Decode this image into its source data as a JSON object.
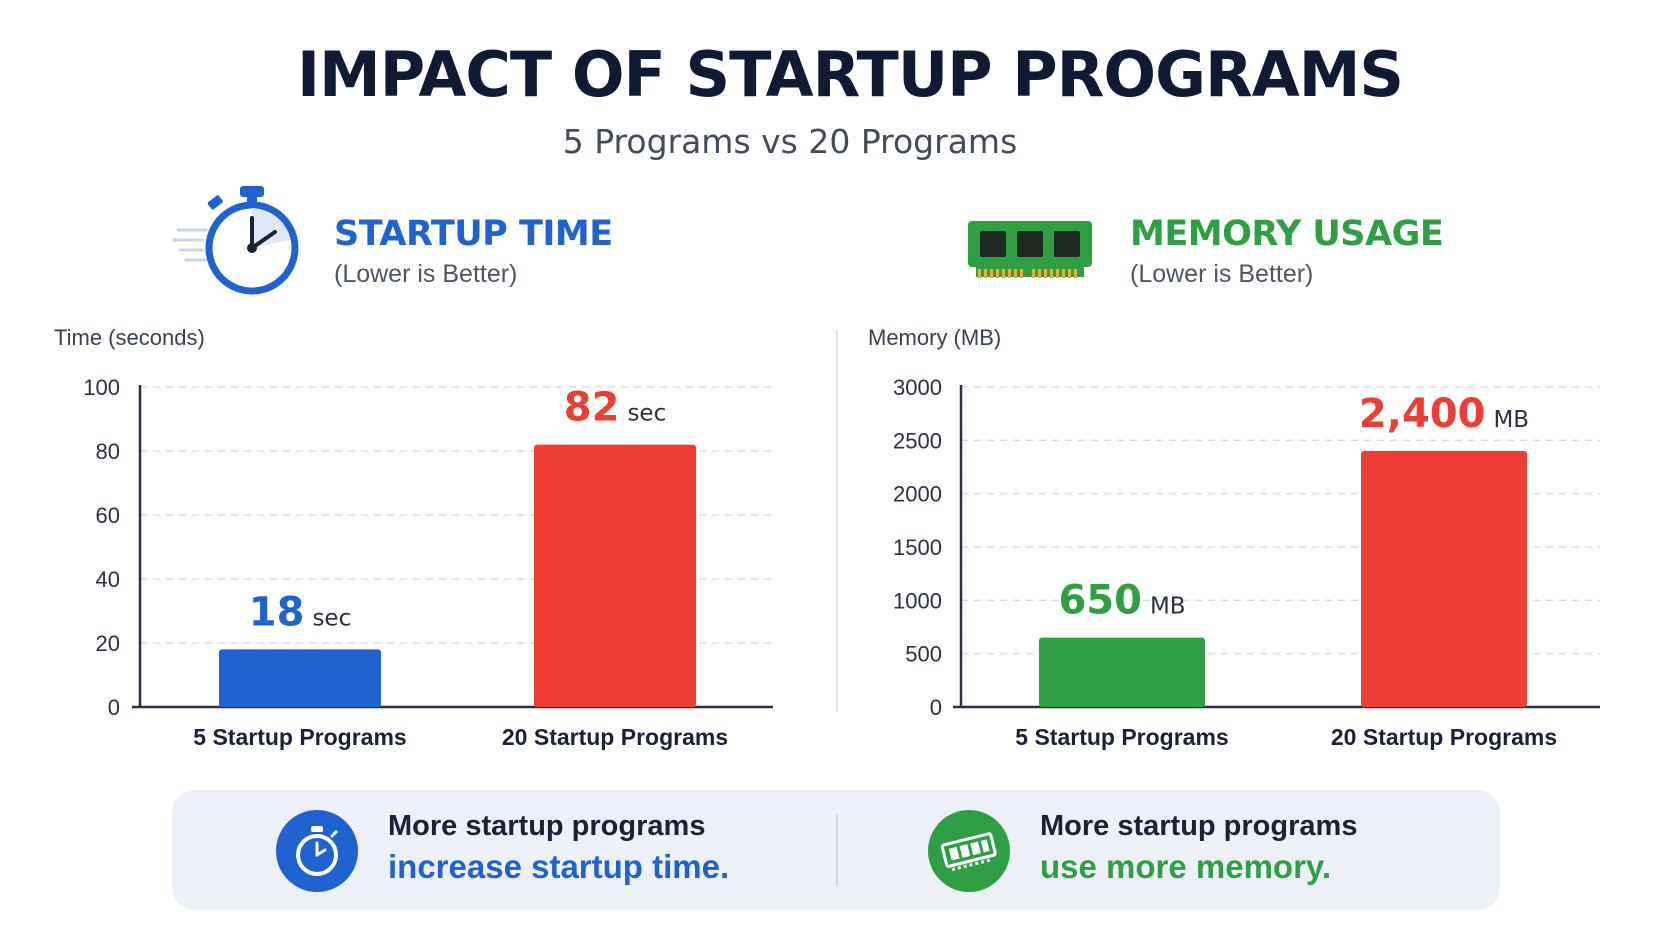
{
  "header": {
    "title": "IMPACT OF STARTUP PROGRAMS",
    "subtitle": "5 Programs vs 20 Programs"
  },
  "panels": [
    {
      "title": "STARTUP TIME",
      "subtitle": "(Lower is Better)",
      "accent": "#1f63d0",
      "icon": "stopwatch-icon"
    },
    {
      "title": "MEMORY USAGE",
      "subtitle": "(Lower is Better)",
      "accent": "#2ea043",
      "icon": "ram-module-icon"
    }
  ],
  "chart_data": [
    {
      "type": "bar",
      "ylabel": "Time (seconds)",
      "xlabel": "",
      "categories": [
        "5 Startup Programs",
        "20 Startup Programs"
      ],
      "values": [
        18,
        82
      ],
      "value_labels": [
        "18",
        "82"
      ],
      "unit": "sec",
      "colors": [
        "#1f63d0",
        "#ef3d33"
      ],
      "ylim": [
        0,
        100
      ],
      "yticks": [
        0,
        20,
        40,
        60,
        80,
        100
      ],
      "grid": true
    },
    {
      "type": "bar",
      "ylabel": "Memory (MB)",
      "xlabel": "",
      "categories": [
        "5 Startup Programs",
        "20 Startup Programs"
      ],
      "values": [
        650,
        2400
      ],
      "value_labels": [
        "650",
        "2,400"
      ],
      "unit": "MB",
      "colors": [
        "#2ea043",
        "#ef3d33"
      ],
      "ylim": [
        0,
        3000
      ],
      "yticks": [
        0,
        500,
        1000,
        1500,
        2000,
        2500,
        3000
      ],
      "grid": true
    }
  ],
  "callouts": [
    {
      "line1": "More startup programs",
      "line2": "increase startup time.",
      "accent": "#1f63d0",
      "icon": "stopwatch-icon"
    },
    {
      "line1": "More startup programs",
      "line2": "use more memory.",
      "accent": "#2ea043",
      "icon": "ram-module-icon"
    }
  ]
}
